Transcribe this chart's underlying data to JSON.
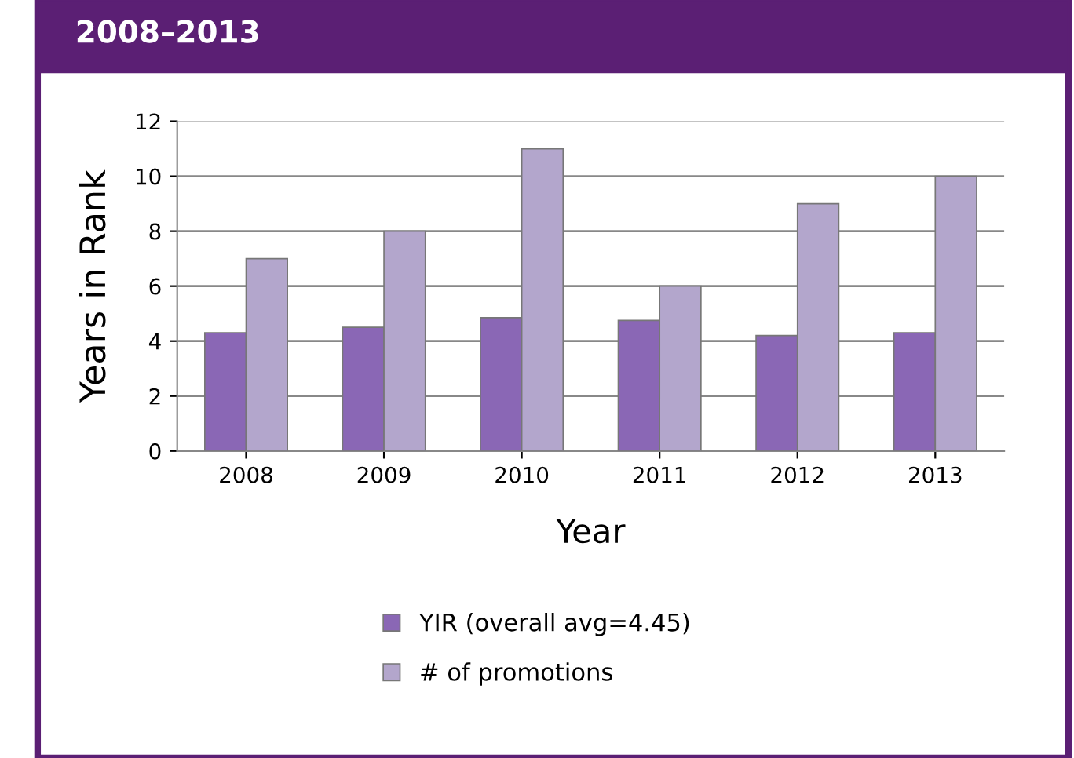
{
  "chart_data": {
    "type": "bar",
    "title": "2008–2013",
    "xlabel": "Year",
    "ylabel": "Years in Rank",
    "categories": [
      "2008",
      "2009",
      "2010",
      "2011",
      "2012",
      "2013"
    ],
    "series": [
      {
        "name": "YIR (overall avg=4.45)",
        "color": "#8a67b5",
        "values": [
          4.3,
          4.5,
          4.85,
          4.75,
          4.2,
          4.3
        ]
      },
      {
        "name": "# of promotions",
        "color": "#b3a6cc",
        "values": [
          7,
          8,
          11,
          6,
          9,
          10
        ]
      }
    ],
    "ylim": [
      0,
      12
    ],
    "yticks": [
      0,
      2,
      4,
      6,
      8,
      10,
      12
    ],
    "grid": "y",
    "legend": "bottom"
  }
}
